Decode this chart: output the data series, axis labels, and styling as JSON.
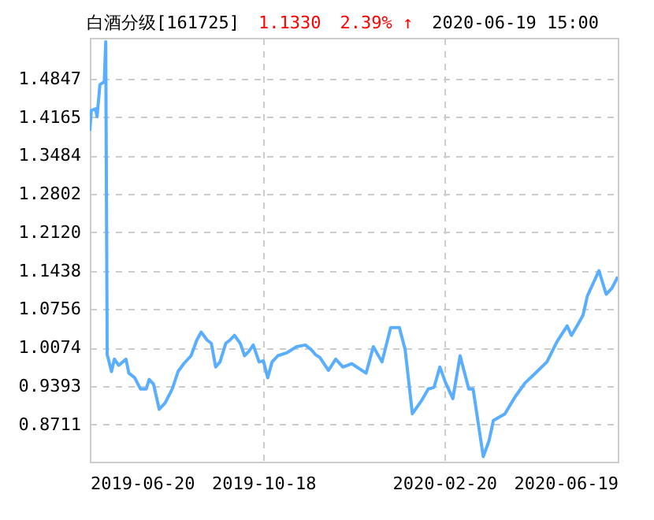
{
  "chart_data": {
    "type": "line",
    "title": "白酒分级[161725]",
    "annotations": [
      "1.1330",
      "2.39% ↑",
      "2020-06-19 15:00"
    ],
    "x": [
      "2019-06-20",
      "2019-06-21",
      "2019-06-24",
      "2019-06-25",
      "2019-06-27",
      "2019-06-30",
      "2019-07-01",
      "2019-07-02",
      "2019-07-05",
      "2019-07-07",
      "2019-07-10",
      "2019-07-15",
      "2019-07-17",
      "2019-07-21",
      "2019-07-25",
      "2019-07-29",
      "2019-07-31",
      "2019-08-03",
      "2019-08-07",
      "2019-08-11",
      "2019-08-16",
      "2019-08-20",
      "2019-08-24",
      "2019-08-29",
      "2019-09-02",
      "2019-09-05",
      "2019-09-09",
      "2019-09-12",
      "2019-09-15",
      "2019-09-18",
      "2019-09-22",
      "2019-09-25",
      "2019-09-28",
      "2019-10-02",
      "2019-10-05",
      "2019-10-08",
      "2019-10-11",
      "2019-10-15",
      "2019-10-18",
      "2019-10-21",
      "2019-10-24",
      "2019-10-28",
      "2019-11-03",
      "2019-11-10",
      "2019-11-16",
      "2019-11-20",
      "2019-11-23",
      "2019-11-26",
      "2019-12-02",
      "2019-12-07",
      "2019-12-12",
      "2019-12-18",
      "2019-12-28",
      "2020-01-02",
      "2020-01-08",
      "2020-01-14",
      "2020-01-20",
      "2020-01-24",
      "2020-01-29",
      "2020-02-04",
      "2020-02-09",
      "2020-02-13",
      "2020-02-17",
      "2020-02-21",
      "2020-02-26",
      "2020-03-02",
      "2020-03-08",
      "2020-03-11",
      "2020-03-18",
      "2020-03-22",
      "2020-03-25",
      "2020-04-02",
      "2020-04-09",
      "2020-04-16",
      "2020-04-23",
      "2020-05-01",
      "2020-05-08",
      "2020-05-15",
      "2020-05-18",
      "2020-05-23",
      "2020-05-26",
      "2020-05-29",
      "2020-06-06",
      "2020-06-11",
      "2020-06-15",
      "2020-06-19"
    ],
    "series": [
      {
        "color": "#5aaeff",
        "values": [
          1.392,
          1.428,
          1.431,
          1.417,
          1.474,
          1.479,
          1.55,
          0.995,
          0.965,
          0.987,
          0.976,
          0.987,
          0.962,
          0.954,
          0.934,
          0.934,
          0.951,
          0.943,
          0.898,
          0.909,
          0.934,
          0.965,
          0.979,
          0.993,
          1.021,
          1.035,
          1.021,
          1.015,
          0.973,
          0.982,
          1.015,
          1.021,
          1.029,
          1.015,
          0.993,
          1.001,
          1.012,
          0.982,
          0.984,
          0.954,
          0.982,
          0.993,
          0.998,
          1.009,
          1.012,
          1.004,
          0.995,
          0.99,
          0.967,
          0.987,
          0.973,
          0.979,
          0.962,
          1.009,
          0.982,
          1.043,
          1.043,
          1.004,
          0.89,
          0.912,
          0.934,
          0.937,
          0.973,
          0.945,
          0.917,
          0.993,
          0.934,
          0.934,
          0.814,
          0.842,
          0.878,
          0.89,
          0.92,
          0.945,
          0.962,
          0.982,
          1.018,
          1.046,
          1.029,
          1.051,
          1.065,
          1.099,
          1.144,
          1.102,
          1.113,
          1.133
        ]
      }
    ],
    "xlim": [
      "2019-06-20",
      "2020-06-19"
    ],
    "xticks": [
      "2019-06-20",
      "2019-10-18",
      "2020-02-20",
      "2020-06-19"
    ],
    "ylim": [
      0.805,
      1.557
    ],
    "yticks": [
      {
        "value": 0.8711,
        "label": "0.8711"
      },
      {
        "value": 0.9393,
        "label": "0.9393"
      },
      {
        "value": 1.0074,
        "label": "1.0074"
      },
      {
        "value": 1.0756,
        "label": "1.0756"
      },
      {
        "value": 1.1438,
        "label": "1.1438"
      },
      {
        "value": 1.212,
        "label": "1.2120"
      },
      {
        "value": 1.2802,
        "label": "1.2802"
      },
      {
        "value": 1.3484,
        "label": "1.3484"
      },
      {
        "value": 1.4165,
        "label": "1.4165"
      },
      {
        "value": 1.4847,
        "label": "1.4847"
      }
    ],
    "grid": true,
    "marker": "none",
    "line_style": "solid"
  }
}
